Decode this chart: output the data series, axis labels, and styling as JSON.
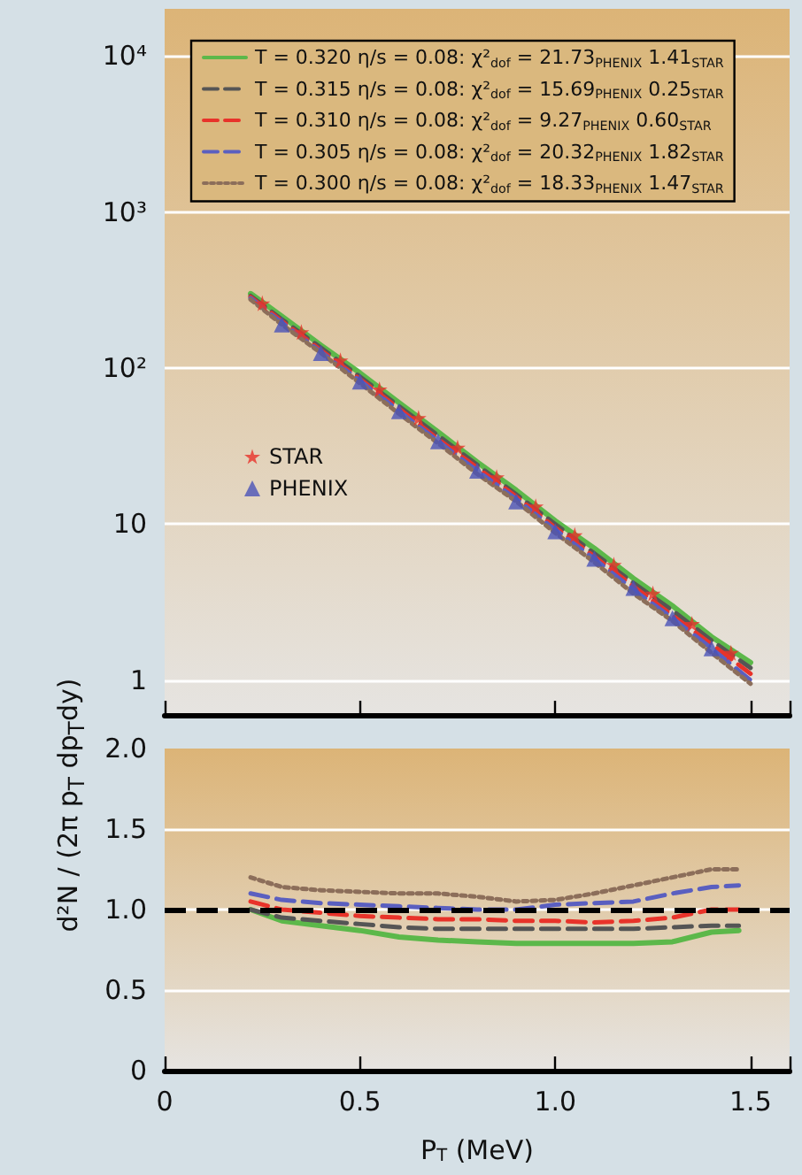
{
  "chart_data": [
    {
      "type": "line",
      "ylabel": "d²N / (2π p$_{T}$ dp$_{T}$dy)",
      "log": "y",
      "grid": "y",
      "legend": "top",
      "tick_labels": "y",
      "xlim": [
        0,
        1.6
      ],
      "xticks": [
        0,
        0.5,
        1.0,
        1.5
      ],
      "ylim": [
        0.6,
        20000
      ],
      "yticks": [
        1,
        10,
        {
          "value": 100,
          "label": "10²"
        },
        {
          "value": 1000,
          "label": "10³"
        },
        {
          "value": 10000,
          "label": "10⁴"
        }
      ],
      "x": [
        0.22,
        0.3,
        0.4,
        0.5,
        0.6,
        0.7,
        0.8,
        0.9,
        1.0,
        1.1,
        1.2,
        1.3,
        1.4,
        1.5
      ],
      "series": [
        {
          "name": "T = 0.320 η/s = 0.08: χ²$_{dof}$ = 21.73$_{PHENIX}$ 1.41$_{STAR}$",
          "color": "#5cb84a",
          "line_style": "solid",
          "marker": "none",
          "values": [
            300,
            215,
            140,
            93,
            60,
            39,
            25,
            16.5,
            10.5,
            7,
            4.5,
            3,
            1.9,
            1.3
          ]
        },
        {
          "name": "T = 0.315 η/s = 0.08: χ²$_{dof}$ = 15.69$_{PHENIX}$ 0.25$_{STAR}$",
          "color": "#555555",
          "line_style": "dashed",
          "marker": "none",
          "values": [
            290,
            205,
            135,
            88,
            57,
            37,
            24,
            15.5,
            10,
            6.5,
            4.2,
            2.8,
            1.8,
            1.2
          ]
        },
        {
          "name": "T = 0.310 η/s = 0.08: χ²$_{dof}$ = 9.27$_{PHENIX}$ 0.60$_{STAR}$",
          "color": "#e8332a",
          "line_style": "dashed",
          "marker": "none",
          "values": [
            285,
            200,
            130,
            85,
            55,
            35,
            23,
            15,
            9.5,
            6.2,
            4,
            2.6,
            1.7,
            1.1
          ]
        },
        {
          "name": "T = 0.305 η/s = 0.08: χ²$_{dof}$ = 20.32$_{PHENIX}$ 1.82$_{STAR}$",
          "color": "#5a5fc0",
          "line_style": "dashed",
          "marker": "none",
          "values": [
            280,
            195,
            127,
            83,
            53,
            34,
            22,
            14.5,
            9.2,
            6,
            3.8,
            2.5,
            1.6,
            1.0
          ]
        },
        {
          "name": "T = 0.300 η/s = 0.08: χ²$_{dof}$ = 18.33$_{PHENIX}$ 1.47$_{STAR}$",
          "color": "#8c6e5a",
          "line_style": "dotted",
          "marker": "none",
          "values": [
            275,
            190,
            125,
            80,
            51,
            33,
            21,
            14,
            8.8,
            5.7,
            3.6,
            2.4,
            1.5,
            0.95
          ]
        },
        {
          "name": "STAR",
          "type": "scatter",
          "marker": "star",
          "color": "#e8332a",
          "x": [
            0.25,
            0.35,
            0.45,
            0.55,
            0.65,
            0.75,
            0.85,
            0.95,
            1.05,
            1.15,
            1.25,
            1.35,
            1.45
          ],
          "values": [
            260,
            170,
            112,
            73,
            48,
            31,
            20,
            13,
            8.5,
            5.5,
            3.6,
            2.3,
            1.5
          ]
        },
        {
          "name": "PHENIX",
          "type": "scatter",
          "marker": "triangle",
          "color": "#4a52b8",
          "x": [
            0.3,
            0.4,
            0.5,
            0.6,
            0.7,
            0.8,
            0.9,
            1.0,
            1.1,
            1.2,
            1.3,
            1.4
          ],
          "values": [
            190,
            125,
            82,
            53,
            34,
            22,
            14,
            9,
            6,
            3.9,
            2.5,
            1.6
          ]
        }
      ]
    },
    {
      "type": "line",
      "xlabel": "P$_{T}$ (MeV)",
      "grid": "y",
      "xlim": [
        0,
        1.6
      ],
      "xticks": [
        0,
        0.5,
        {
          "value": 1,
          "label": "1.0"
        },
        1.5
      ],
      "ylim": [
        0,
        2
      ],
      "yticks": [
        0,
        0.5,
        {
          "value": 1,
          "label": "1.0"
        },
        1.5,
        {
          "value": 2,
          "label": "2.0"
        }
      ],
      "x": [
        0.22,
        0.3,
        0.4,
        0.5,
        0.6,
        0.7,
        0.8,
        0.9,
        1.0,
        1.1,
        1.2,
        1.3,
        1.4,
        1.47
      ],
      "ref_lines": [
        {
          "axis": "y",
          "value": 1,
          "color": "#000000",
          "line_style": "dashed"
        }
      ],
      "series": [
        {
          "color": "#5cb84a",
          "line_style": "solid",
          "marker": "none",
          "values": [
            1.0,
            0.93,
            0.9,
            0.87,
            0.83,
            0.81,
            0.8,
            0.79,
            0.79,
            0.79,
            0.79,
            0.8,
            0.86,
            0.87
          ]
        },
        {
          "color": "#555555",
          "line_style": "dashed",
          "marker": "none",
          "values": [
            1.0,
            0.95,
            0.93,
            0.91,
            0.89,
            0.88,
            0.88,
            0.88,
            0.88,
            0.88,
            0.88,
            0.89,
            0.9,
            0.9
          ]
        },
        {
          "color": "#e8332a",
          "line_style": "dashed",
          "marker": "none",
          "values": [
            1.05,
            1.0,
            0.98,
            0.96,
            0.95,
            0.94,
            0.94,
            0.93,
            0.93,
            0.92,
            0.93,
            0.95,
            1.0,
            1.0
          ]
        },
        {
          "color": "#5a5fc0",
          "line_style": "dashed",
          "marker": "none",
          "values": [
            1.1,
            1.06,
            1.04,
            1.03,
            1.02,
            1.01,
            1.0,
            1.0,
            1.03,
            1.04,
            1.05,
            1.1,
            1.14,
            1.15
          ]
        },
        {
          "color": "#8c6e5a",
          "line_style": "dotted",
          "marker": "none",
          "values": [
            1.2,
            1.14,
            1.12,
            1.11,
            1.1,
            1.1,
            1.08,
            1.05,
            1.06,
            1.1,
            1.15,
            1.2,
            1.25,
            1.25
          ]
        }
      ]
    }
  ]
}
